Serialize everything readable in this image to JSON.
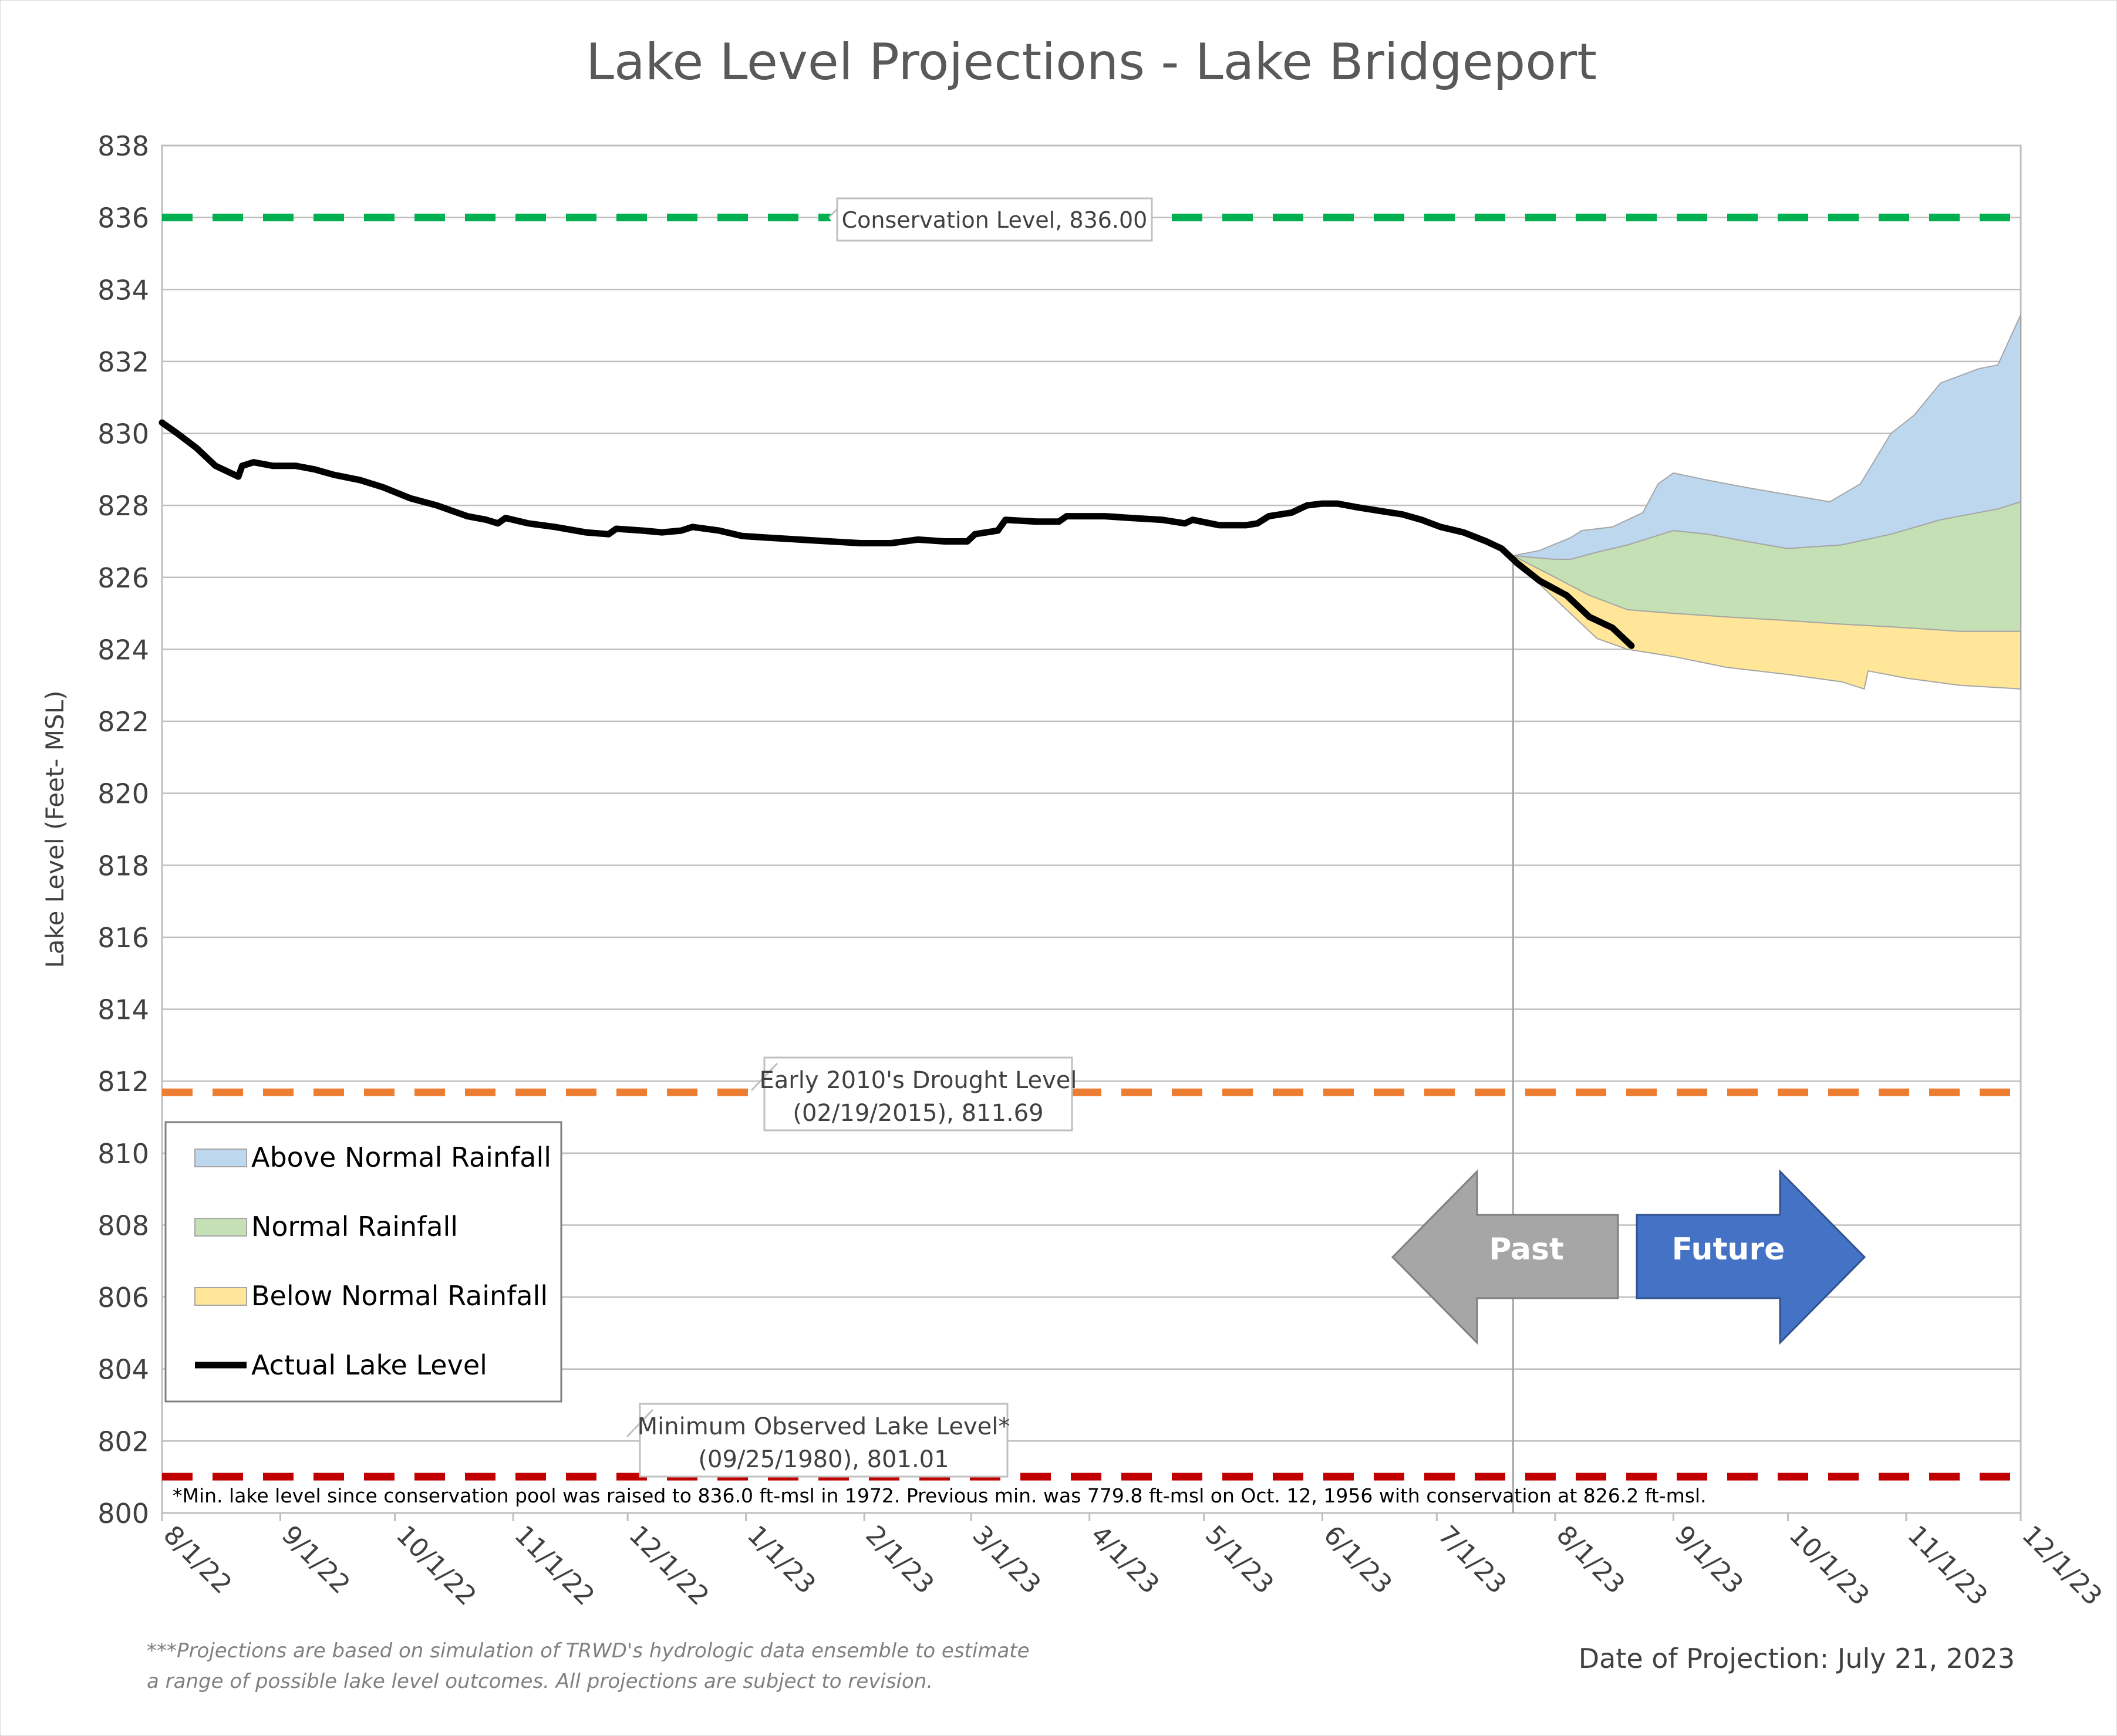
{
  "chart_data": {
    "type": "area",
    "title": "Lake Level Projections - Lake Bridgeport",
    "ylabel": "Lake Level (Feet- MSL)",
    "xlabel": "",
    "ylim": [
      800,
      838
    ],
    "y_ticks": [
      "800",
      "802",
      "804",
      "806",
      "808",
      "810",
      "812",
      "814",
      "816",
      "818",
      "820",
      "822",
      "824",
      "826",
      "828",
      "830",
      "832",
      "834",
      "836",
      "838"
    ],
    "x_ticks": [
      {
        "date": "2022-08-01",
        "label": "8/1/22"
      },
      {
        "date": "2022-09-01",
        "label": "9/1/22"
      },
      {
        "date": "2022-10-01",
        "label": "10/1/22"
      },
      {
        "date": "2022-11-01",
        "label": "11/1/22"
      },
      {
        "date": "2022-12-01",
        "label": "12/1/22"
      },
      {
        "date": "2023-01-01",
        "label": "1/1/23"
      },
      {
        "date": "2023-02-01",
        "label": "2/1/23"
      },
      {
        "date": "2023-03-01",
        "label": "3/1/23"
      },
      {
        "date": "2023-04-01",
        "label": "4/1/23"
      },
      {
        "date": "2023-05-01",
        "label": "5/1/23"
      },
      {
        "date": "2023-06-01",
        "label": "6/1/23"
      },
      {
        "date": "2023-07-01",
        "label": "7/1/23"
      },
      {
        "date": "2023-08-01",
        "label": "8/1/23"
      },
      {
        "date": "2023-09-01",
        "label": "9/1/23"
      },
      {
        "date": "2023-10-01",
        "label": "10/1/23"
      },
      {
        "date": "2023-11-01",
        "label": "11/1/23"
      },
      {
        "date": "2023-12-01",
        "label": "12/1/23"
      }
    ],
    "grid": true,
    "legend_position": "bottom-left",
    "series": [
      {
        "name": "Actual Lake Level",
        "style": "line",
        "color": "#000000",
        "points": [
          [
            "2022-08-01",
            830.3
          ],
          [
            "2022-08-05",
            830.0
          ],
          [
            "2022-08-10",
            829.6
          ],
          [
            "2022-08-15",
            829.1
          ],
          [
            "2022-08-21",
            828.8
          ],
          [
            "2022-08-22",
            829.1
          ],
          [
            "2022-08-25",
            829.2
          ],
          [
            "2022-08-30",
            829.1
          ],
          [
            "2022-09-05",
            829.1
          ],
          [
            "2022-09-10",
            829.0
          ],
          [
            "2022-09-15",
            828.85
          ],
          [
            "2022-09-22",
            828.7
          ],
          [
            "2022-09-28",
            828.5
          ],
          [
            "2022-10-05",
            828.2
          ],
          [
            "2022-10-12",
            828.0
          ],
          [
            "2022-10-20",
            827.7
          ],
          [
            "2022-10-25",
            827.6
          ],
          [
            "2022-10-28",
            827.5
          ],
          [
            "2022-10-30",
            827.65
          ],
          [
            "2022-11-05",
            827.5
          ],
          [
            "2022-11-12",
            827.4
          ],
          [
            "2022-11-20",
            827.25
          ],
          [
            "2022-11-26",
            827.2
          ],
          [
            "2022-11-28",
            827.35
          ],
          [
            "2022-12-05",
            827.3
          ],
          [
            "2022-12-10",
            827.25
          ],
          [
            "2022-12-15",
            827.3
          ],
          [
            "2022-12-18",
            827.4
          ],
          [
            "2022-12-25",
            827.3
          ],
          [
            "2022-12-31",
            827.15
          ],
          [
            "2023-01-07",
            827.1
          ],
          [
            "2023-01-15",
            827.05
          ],
          [
            "2023-01-23",
            827.0
          ],
          [
            "2023-01-31",
            826.95
          ],
          [
            "2023-02-08",
            826.95
          ],
          [
            "2023-02-15",
            827.05
          ],
          [
            "2023-02-22",
            827.0
          ],
          [
            "2023-02-28",
            827.0
          ],
          [
            "2023-03-02",
            827.2
          ],
          [
            "2023-03-08",
            827.3
          ],
          [
            "2023-03-10",
            827.6
          ],
          [
            "2023-03-18",
            827.55
          ],
          [
            "2023-03-24",
            827.55
          ],
          [
            "2023-03-26",
            827.7
          ],
          [
            "2023-04-05",
            827.7
          ],
          [
            "2023-04-12",
            827.65
          ],
          [
            "2023-04-20",
            827.6
          ],
          [
            "2023-04-26",
            827.5
          ],
          [
            "2023-04-28",
            827.6
          ],
          [
            "2023-05-05",
            827.45
          ],
          [
            "2023-05-12",
            827.45
          ],
          [
            "2023-05-15",
            827.5
          ],
          [
            "2023-05-18",
            827.7
          ],
          [
            "2023-05-24",
            827.8
          ],
          [
            "2023-05-28",
            828.0
          ],
          [
            "2023-06-01",
            828.05
          ],
          [
            "2023-06-05",
            828.05
          ],
          [
            "2023-06-10",
            827.95
          ],
          [
            "2023-06-16",
            827.85
          ],
          [
            "2023-06-22",
            827.75
          ],
          [
            "2023-06-27",
            827.6
          ],
          [
            "2023-07-02",
            827.4
          ],
          [
            "2023-07-08",
            827.25
          ],
          [
            "2023-07-14",
            827.0
          ],
          [
            "2023-07-18",
            826.8
          ],
          [
            "2023-07-22",
            826.4
          ],
          [
            "2023-07-28",
            825.9
          ],
          [
            "2023-08-04",
            825.5
          ],
          [
            "2023-08-10",
            824.9
          ],
          [
            "2023-08-16",
            824.6
          ],
          [
            "2023-08-21",
            824.1
          ]
        ]
      },
      {
        "name": "Above Normal Rainfall",
        "style": "band",
        "color": "#bdd7ee",
        "upper": [
          [
            "2023-07-21",
            826.6
          ],
          [
            "2023-07-28",
            826.75
          ],
          [
            "2023-08-05",
            827.1
          ],
          [
            "2023-08-08",
            827.3
          ],
          [
            "2023-08-16",
            827.4
          ],
          [
            "2023-08-24",
            827.8
          ],
          [
            "2023-08-28",
            828.6
          ],
          [
            "2023-09-01",
            828.9
          ],
          [
            "2023-09-10",
            828.7
          ],
          [
            "2023-09-20",
            828.5
          ],
          [
            "2023-10-01",
            828.3
          ],
          [
            "2023-10-12",
            828.1
          ],
          [
            "2023-10-20",
            828.6
          ],
          [
            "2023-10-28",
            830.0
          ],
          [
            "2023-11-03",
            830.5
          ],
          [
            "2023-11-10",
            831.4
          ],
          [
            "2023-11-20",
            831.8
          ],
          [
            "2023-11-25",
            831.9
          ],
          [
            "2023-11-28",
            832.6
          ],
          [
            "2023-12-01",
            833.3
          ]
        ],
        "lower": [
          [
            "2023-07-21",
            826.6
          ],
          [
            "2023-08-01",
            826.5
          ],
          [
            "2023-08-05",
            826.5
          ],
          [
            "2023-08-12",
            826.7
          ],
          [
            "2023-08-20",
            826.9
          ],
          [
            "2023-09-01",
            827.3
          ],
          [
            "2023-09-10",
            827.2
          ],
          [
            "2023-09-20",
            827.0
          ],
          [
            "2023-10-01",
            826.8
          ],
          [
            "2023-10-15",
            826.9
          ],
          [
            "2023-10-28",
            827.2
          ],
          [
            "2023-11-10",
            827.6
          ],
          [
            "2023-11-25",
            827.9
          ],
          [
            "2023-12-01",
            828.1
          ]
        ]
      },
      {
        "name": "Normal Rainfall",
        "style": "band",
        "color": "#c5e0b4",
        "upper": [
          [
            "2023-07-21",
            826.6
          ],
          [
            "2023-08-01",
            826.5
          ],
          [
            "2023-08-05",
            826.5
          ],
          [
            "2023-08-12",
            826.7
          ],
          [
            "2023-08-20",
            826.9
          ],
          [
            "2023-09-01",
            827.3
          ],
          [
            "2023-09-10",
            827.2
          ],
          [
            "2023-09-20",
            827.0
          ],
          [
            "2023-10-01",
            826.8
          ],
          [
            "2023-10-15",
            826.9
          ],
          [
            "2023-10-28",
            827.2
          ],
          [
            "2023-11-10",
            827.6
          ],
          [
            "2023-11-25",
            827.9
          ],
          [
            "2023-12-01",
            828.1
          ]
        ],
        "lower": [
          [
            "2023-07-21",
            826.6
          ],
          [
            "2023-08-01",
            826.0
          ],
          [
            "2023-08-10",
            825.5
          ],
          [
            "2023-08-20",
            825.1
          ],
          [
            "2023-09-01",
            825.0
          ],
          [
            "2023-09-15",
            824.9
          ],
          [
            "2023-10-01",
            824.8
          ],
          [
            "2023-10-15",
            824.7
          ],
          [
            "2023-11-01",
            824.6
          ],
          [
            "2023-11-15",
            824.5
          ],
          [
            "2023-12-01",
            824.5
          ]
        ]
      },
      {
        "name": "Below Normal Rainfall",
        "style": "band",
        "color": "#ffe699",
        "upper": [
          [
            "2023-07-21",
            826.6
          ],
          [
            "2023-08-01",
            826.0
          ],
          [
            "2023-08-10",
            825.5
          ],
          [
            "2023-08-20",
            825.1
          ],
          [
            "2023-09-01",
            825.0
          ],
          [
            "2023-09-15",
            824.9
          ],
          [
            "2023-10-01",
            824.8
          ],
          [
            "2023-10-15",
            824.7
          ],
          [
            "2023-11-01",
            824.6
          ],
          [
            "2023-11-15",
            824.5
          ],
          [
            "2023-12-01",
            824.5
          ]
        ],
        "lower": [
          [
            "2023-07-21",
            826.6
          ],
          [
            "2023-07-28",
            825.8
          ],
          [
            "2023-08-05",
            825.0
          ],
          [
            "2023-08-12",
            824.3
          ],
          [
            "2023-08-20",
            824.0
          ],
          [
            "2023-09-01",
            823.8
          ],
          [
            "2023-09-15",
            823.5
          ],
          [
            "2023-10-01",
            823.3
          ],
          [
            "2023-10-15",
            823.1
          ],
          [
            "2023-10-21",
            822.9
          ],
          [
            "2023-10-22",
            823.4
          ],
          [
            "2023-11-01",
            823.2
          ],
          [
            "2023-11-15",
            823.0
          ],
          [
            "2023-12-01",
            822.9
          ]
        ]
      }
    ],
    "reference_lines": [
      {
        "name": "Conservation Level",
        "value": 836.0,
        "color": "#00b050",
        "label": "Conservation Level, 836.00"
      },
      {
        "name": "Early 2010's Drought Level",
        "value": 811.69,
        "color": "#ed7d31",
        "label_line1": "Early 2010's Drought Level",
        "label_line2": "(02/19/2015), 811.69"
      },
      {
        "name": "Minimum Observed Lake Level",
        "value": 801.01,
        "color": "#c00000",
        "label_line1": "Minimum Observed Lake Level*",
        "label_line2": "(09/25/1980), 801.01"
      }
    ],
    "projection_start": "2023-07-21",
    "arrows": {
      "past": "Past",
      "future": "Future",
      "past_color": "#a6a6a6",
      "future_color": "#4472c4"
    },
    "legend": [
      {
        "label": "Above Normal Rainfall",
        "color": "#bdd7ee",
        "kind": "swatch"
      },
      {
        "label": "Normal Rainfall",
        "color": "#c5e0b4",
        "kind": "swatch"
      },
      {
        "label": "Below Normal Rainfall",
        "color": "#ffe699",
        "kind": "swatch"
      },
      {
        "label": "Actual Lake Level",
        "color": "#000000",
        "kind": "line"
      }
    ],
    "footnote_min": "*Min. lake level since conservation pool was raised to 836.0 ft-msl in 1972.  Previous min. was 779.8 ft-msl on Oct. 12, 1956 with conservation at 826.2 ft-msl.",
    "footnote_projection_line1": "***Projections are based on simulation of TRWD's hydrologic data ensemble to estimate",
    "footnote_projection_line2": "a range of possible lake level outcomes.  All projections are subject to revision.",
    "date_of_projection": "Date of Projection: July 21, 2023"
  }
}
